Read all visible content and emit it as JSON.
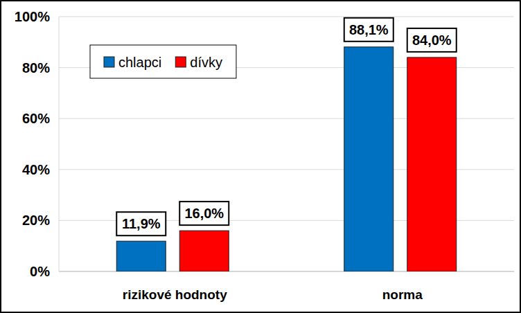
{
  "chart_data": {
    "type": "bar",
    "categories": [
      "rizikové hodnoty",
      "norma"
    ],
    "series": [
      {
        "name": "chlapci",
        "color": "#0070c0",
        "values": [
          11.9,
          88.1
        ],
        "value_labels": [
          "11,9%",
          "88,1%"
        ]
      },
      {
        "name": "dívky",
        "color": "#ff0000",
        "values": [
          16.0,
          84.0
        ],
        "value_labels": [
          "16,0%",
          "84,0%"
        ]
      }
    ],
    "ylim": [
      0,
      100
    ],
    "yticks": [
      {
        "value": 0,
        "label": "0%"
      },
      {
        "value": 20,
        "label": "20%"
      },
      {
        "value": 40,
        "label": "40%"
      },
      {
        "value": 60,
        "label": "60%"
      },
      {
        "value": 80,
        "label": "80%"
      },
      {
        "value": 100,
        "label": "100%"
      }
    ],
    "grid": true,
    "legend": "top-left",
    "data_labels": true
  }
}
